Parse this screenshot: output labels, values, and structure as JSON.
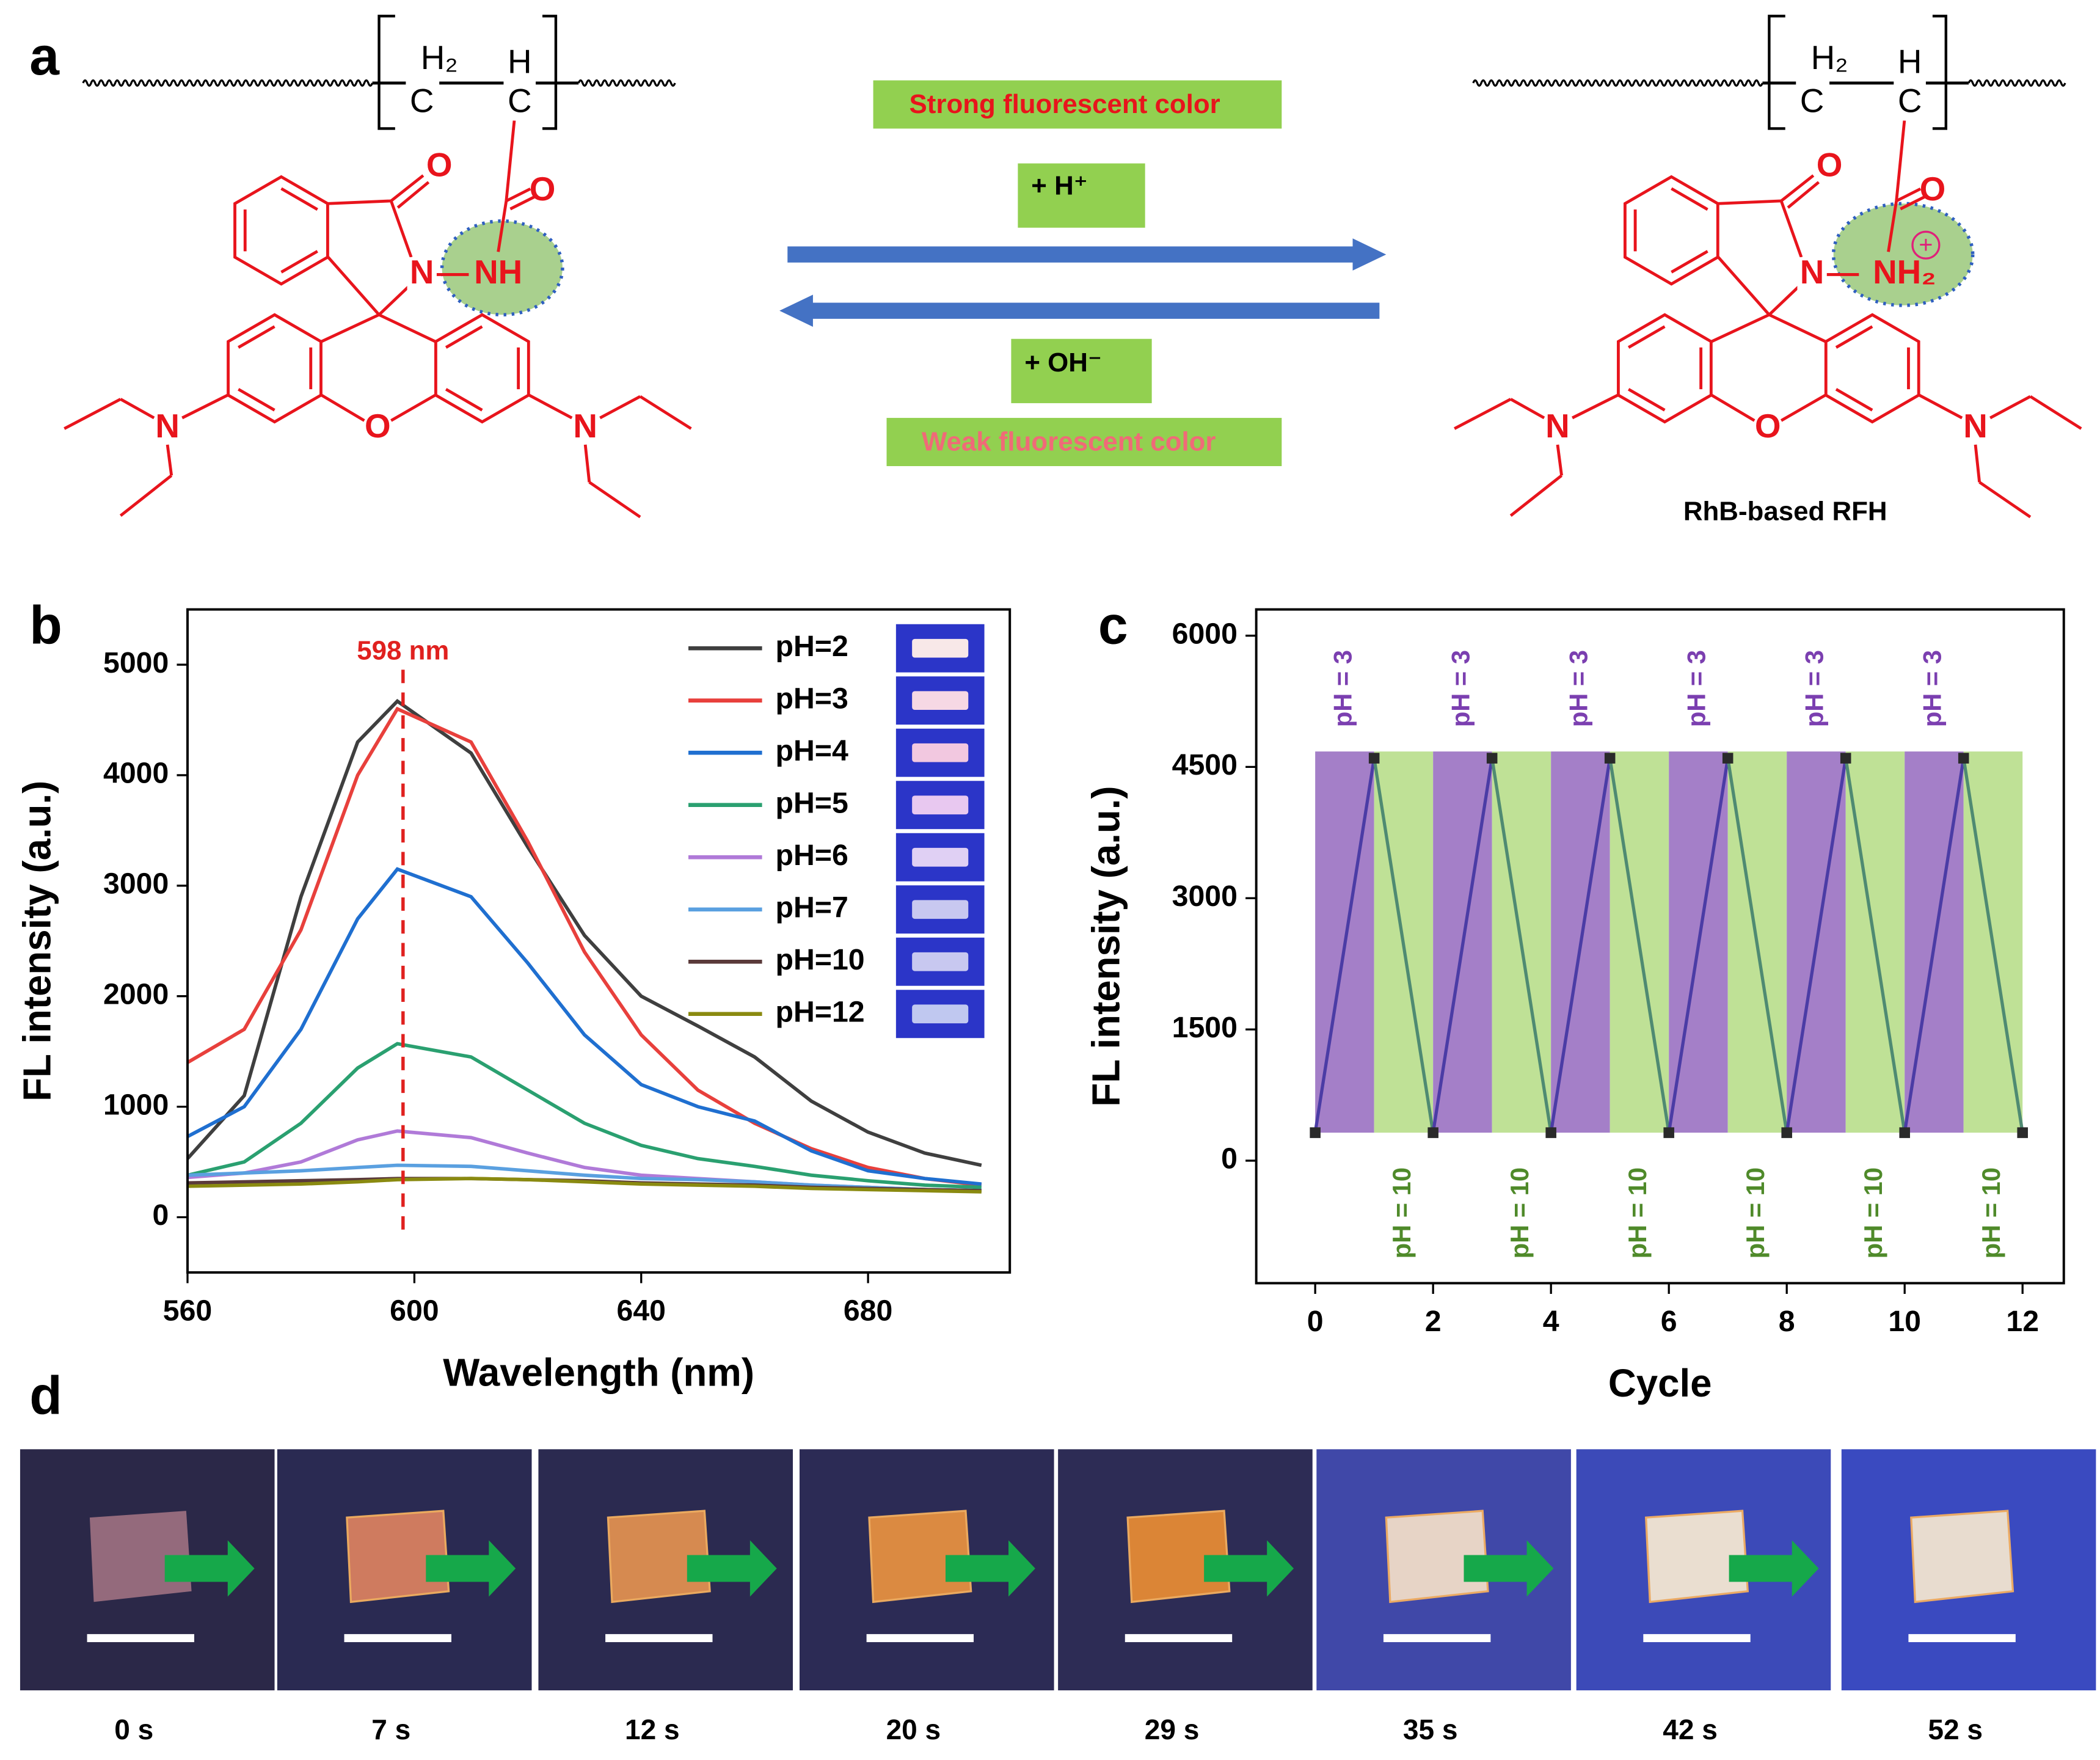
{
  "panel_labels": [
    "a",
    "b",
    "c",
    "d"
  ],
  "scheme": {
    "left_labels": [
      "H₂",
      "H",
      "C",
      "C",
      "O",
      "O",
      "N",
      "NH",
      "O",
      "N",
      "N"
    ],
    "right_labels": [
      "H₂",
      "H",
      "C",
      "C",
      "O",
      "O",
      "N",
      "NH₂",
      "O",
      "N",
      "N"
    ],
    "charge": "+",
    "condition_top": "Strong fluorescent color",
    "reagent_acid": "+ H⁺",
    "reagent_base": "+ OH⁻",
    "condition_bottom": "Weak fluorescent color",
    "product_name": "RhB-based RFH"
  },
  "chart_data": [
    {
      "type": "line",
      "xlabel": "Wavelength (nm)",
      "ylabel": "FL intensity (a.u.)",
      "x": [
        560,
        570,
        580,
        590,
        597,
        610,
        620,
        630,
        640,
        650,
        660,
        670,
        680,
        690,
        700
      ],
      "series": [
        {
          "name": "pH=2",
          "color": "#3f3f3f",
          "values": [
            530,
            1100,
            2900,
            4300,
            4670,
            4200,
            3350,
            2550,
            2000,
            1730,
            1450,
            1050,
            770,
            580,
            470
          ]
        },
        {
          "name": "pH=3",
          "color": "#e8403c",
          "values": [
            1400,
            1700,
            2600,
            4000,
            4600,
            4300,
            3400,
            2400,
            1650,
            1150,
            850,
            620,
            450,
            350,
            290
          ]
        },
        {
          "name": "pH=4",
          "color": "#1f6fd0",
          "values": [
            730,
            1000,
            1700,
            2700,
            3150,
            2900,
            2300,
            1650,
            1200,
            1000,
            870,
            600,
            420,
            350,
            300
          ]
        },
        {
          "name": "pH=5",
          "color": "#2aa070",
          "values": [
            380,
            500,
            850,
            1350,
            1570,
            1450,
            1150,
            850,
            650,
            530,
            460,
            380,
            330,
            290,
            270
          ]
        },
        {
          "name": "pH=6",
          "color": "#b07ad8",
          "values": [
            360,
            400,
            500,
            700,
            780,
            720,
            580,
            450,
            380,
            350,
            320,
            290,
            270,
            250,
            240
          ]
        },
        {
          "name": "pH=7",
          "color": "#5aa0e0",
          "values": [
            380,
            400,
            420,
            450,
            470,
            460,
            420,
            380,
            350,
            340,
            320,
            290,
            270,
            250,
            240
          ]
        },
        {
          "name": "pH=10",
          "color": "#5a3a3a",
          "values": [
            310,
            320,
            330,
            340,
            350,
            350,
            340,
            330,
            310,
            300,
            290,
            270,
            260,
            250,
            240
          ]
        },
        {
          "name": "pH=12",
          "color": "#8a8a10",
          "values": [
            280,
            290,
            300,
            320,
            340,
            350,
            340,
            320,
            300,
            290,
            280,
            260,
            250,
            240,
            230
          ]
        }
      ],
      "annotation": {
        "text": "598 nm",
        "x": 598,
        "color": "#e0211f"
      },
      "legend": "upper right",
      "xlim": [
        560,
        705
      ],
      "xticks": [
        560,
        600,
        640,
        680
      ],
      "ylim": [
        -500,
        5500
      ],
      "yticks": [
        0,
        1000,
        2000,
        3000,
        4000,
        5000
      ]
    },
    {
      "type": "cycle",
      "xlabel": "Cycle",
      "ylabel": "FL intensity (a.u.)",
      "x": [
        0,
        1,
        2,
        3,
        4,
        5,
        6,
        7,
        8,
        9,
        10,
        11,
        12
      ],
      "values": [
        320,
        4600,
        320,
        4600,
        320,
        4600,
        320,
        4600,
        320,
        4600,
        320,
        4600,
        320
      ],
      "line_colors": [
        "#4b3ca5",
        "#4f8a72"
      ],
      "band_colors": [
        "#a47fc8",
        "#bfe196"
      ],
      "marker_color": "#2a2a2a",
      "annotations": [
        {
          "text": "pH = 3",
          "x": 0.5,
          "color": "#7b3fb0"
        },
        {
          "text": "pH = 3",
          "x": 2.5,
          "color": "#7b3fb0"
        },
        {
          "text": "pH = 3",
          "x": 4.5,
          "color": "#7b3fb0"
        },
        {
          "text": "pH = 3",
          "x": 6.5,
          "color": "#7b3fb0"
        },
        {
          "text": "pH = 3",
          "x": 8.5,
          "color": "#7b3fb0"
        },
        {
          "text": "pH = 3",
          "x": 10.5,
          "color": "#7b3fb0"
        },
        {
          "text": "pH = 10",
          "x": 1.5,
          "color": "#4f8a2a"
        },
        {
          "text": "pH = 10",
          "x": 3.5,
          "color": "#4f8a2a"
        },
        {
          "text": "pH = 10",
          "x": 5.5,
          "color": "#4f8a2a"
        },
        {
          "text": "pH = 10",
          "x": 7.5,
          "color": "#4f8a2a"
        },
        {
          "text": "pH = 10",
          "x": 9.5,
          "color": "#4f8a2a"
        },
        {
          "text": "pH = 10",
          "x": 11.5,
          "color": "#4f8a2a"
        }
      ],
      "xlim": [
        -1,
        12.7
      ],
      "xticks": [
        0,
        2,
        4,
        6,
        8,
        10,
        12
      ],
      "ylim": [
        -1400,
        6300
      ],
      "yticks": [
        0,
        1500,
        3000,
        4500,
        6000
      ]
    }
  ],
  "photos": {
    "labels": [
      "0 s",
      "7 s",
      "12 s",
      "20 s",
      "29 s",
      "35 s",
      "42 s",
      "52 s"
    ]
  }
}
